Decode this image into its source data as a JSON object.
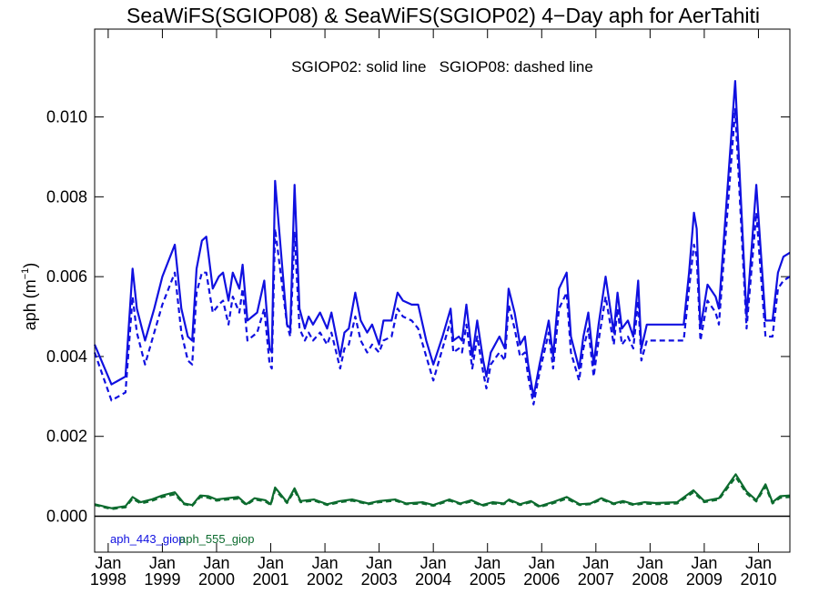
{
  "chart_data": {
    "type": "line",
    "title": "SeaWiFS(SGIOP08) & SeaWiFS(SGIOP02) 4−Day aph for AerTahiti",
    "ylabel": "aph (m",
    "ylabel_sup": "−1",
    "ylabel_close": ")",
    "annotation": "SGIOP02: solid line   SGIOP08: dashed line",
    "ylim": [
      -0.0009,
      0.0122
    ],
    "xlim": [
      1997.75,
      2010.58
    ],
    "y_ticks": [
      {
        "v": 0.0,
        "label": "0.000"
      },
      {
        "v": 0.002,
        "label": "0.002"
      },
      {
        "v": 0.004,
        "label": "0.004"
      },
      {
        "v": 0.006,
        "label": "0.006"
      },
      {
        "v": 0.008,
        "label": "0.008"
      },
      {
        "v": 0.01,
        "label": "0.010"
      }
    ],
    "x_ticks": [
      {
        "v": 1998.0,
        "month": "Jan",
        "year": "1998"
      },
      {
        "v": 1999.0,
        "month": "Jan",
        "year": "1999"
      },
      {
        "v": 2000.0,
        "month": "Jan",
        "year": "2000"
      },
      {
        "v": 2001.0,
        "month": "Jan",
        "year": "2001"
      },
      {
        "v": 2002.0,
        "month": "Jan",
        "year": "2002"
      },
      {
        "v": 2003.0,
        "month": "Jan",
        "year": "2003"
      },
      {
        "v": 2004.0,
        "month": "Jan",
        "year": "2004"
      },
      {
        "v": 2005.0,
        "month": "Jan",
        "year": "2005"
      },
      {
        "v": 2006.0,
        "month": "Jan",
        "year": "2006"
      },
      {
        "v": 2007.0,
        "month": "Jan",
        "year": "2007"
      },
      {
        "v": 2008.0,
        "month": "Jan",
        "year": "2008"
      },
      {
        "v": 2009.0,
        "month": "Jan",
        "year": "2009"
      },
      {
        "v": 2010.0,
        "month": "Jan",
        "year": "2010"
      }
    ],
    "reference_line": 0.0,
    "grid": false,
    "legend_position": "bottom-left",
    "series": [
      {
        "name": "aph_443_giop",
        "color": "#1010e0",
        "style": "solid",
        "x": [
          1997.75,
          1998.06,
          1998.32,
          1998.45,
          1998.53,
          1998.68,
          1998.85,
          1999.0,
          1999.23,
          1999.35,
          1999.47,
          1999.55,
          1999.63,
          1999.73,
          1999.81,
          1999.93,
          2000.04,
          2000.12,
          2000.22,
          2000.3,
          2000.42,
          2000.48,
          2000.57,
          2000.75,
          2000.88,
          2000.98,
          2001.02,
          2001.08,
          2001.3,
          2001.36,
          2001.44,
          2001.53,
          2001.63,
          2001.7,
          2001.78,
          2001.91,
          2002.04,
          2002.12,
          2002.28,
          2002.36,
          2002.44,
          2002.56,
          2002.66,
          2002.78,
          2002.87,
          2003.0,
          2003.08,
          2003.23,
          2003.34,
          2003.44,
          2003.6,
          2003.72,
          2003.87,
          2004.0,
          2004.17,
          2004.32,
          2004.37,
          2004.47,
          2004.53,
          2004.61,
          2004.72,
          2004.81,
          2004.92,
          2004.98,
          2005.06,
          2005.22,
          2005.32,
          2005.39,
          2005.5,
          2005.6,
          2005.69,
          2005.75,
          2005.85,
          2005.96,
          2006.13,
          2006.21,
          2006.32,
          2006.46,
          2006.54,
          2006.69,
          2006.77,
          2006.86,
          2006.96,
          2007.05,
          2007.18,
          2007.33,
          2007.4,
          2007.48,
          2007.59,
          2007.69,
          2007.78,
          2007.84,
          2007.94,
          2008.52,
          2008.62,
          2008.72,
          2008.81,
          2008.86,
          2008.93,
          2009.06,
          2009.21,
          2009.27,
          2009.57,
          2009.78,
          2009.96,
          2010.13,
          2010.26,
          2010.36,
          2010.46,
          2010.58
        ],
        "y": [
          0.0043,
          0.0033,
          0.0035,
          0.0062,
          0.0052,
          0.0044,
          0.0052,
          0.006,
          0.0068,
          0.0052,
          0.0045,
          0.0044,
          0.0062,
          0.0069,
          0.007,
          0.0057,
          0.006,
          0.0061,
          0.0054,
          0.0061,
          0.0057,
          0.0063,
          0.0049,
          0.0051,
          0.0059,
          0.0042,
          0.0041,
          0.0084,
          0.0048,
          0.0047,
          0.0083,
          0.0052,
          0.0047,
          0.005,
          0.0048,
          0.0051,
          0.0047,
          0.0051,
          0.004,
          0.0046,
          0.0047,
          0.0056,
          0.0049,
          0.0046,
          0.0048,
          0.0043,
          0.0049,
          0.0049,
          0.0056,
          0.0054,
          0.0053,
          0.0053,
          0.0044,
          0.0038,
          0.0045,
          0.0052,
          0.0044,
          0.0045,
          0.0044,
          0.0053,
          0.004,
          0.0049,
          0.0039,
          0.0035,
          0.0041,
          0.0045,
          0.0042,
          0.0057,
          0.0051,
          0.0043,
          0.0045,
          0.0038,
          0.003,
          0.0038,
          0.0049,
          0.004,
          0.0057,
          0.0061,
          0.0045,
          0.0037,
          0.0045,
          0.0051,
          0.0038,
          0.0048,
          0.006,
          0.0046,
          0.0056,
          0.0047,
          0.0049,
          0.0045,
          0.0059,
          0.0042,
          0.0048,
          0.0048,
          0.0048,
          0.0061,
          0.0076,
          0.0072,
          0.0047,
          0.0058,
          0.0055,
          0.0052,
          0.0109,
          0.005,
          0.0083,
          0.0049,
          0.0049,
          0.0061,
          0.0065,
          0.0066
        ]
      },
      {
        "name": "aph_443_giop",
        "color": "#1010e0",
        "style": "dashed",
        "x": [
          1997.75,
          1998.06,
          1998.32,
          1998.45,
          1998.53,
          1998.68,
          1998.85,
          1999.0,
          1999.23,
          1999.35,
          1999.47,
          1999.55,
          1999.63,
          1999.73,
          1999.81,
          1999.93,
          2000.04,
          2000.12,
          2000.22,
          2000.3,
          2000.42,
          2000.48,
          2000.57,
          2000.75,
          2000.88,
          2000.98,
          2001.02,
          2001.08,
          2001.3,
          2001.36,
          2001.44,
          2001.53,
          2001.63,
          2001.7,
          2001.78,
          2001.91,
          2002.04,
          2002.12,
          2002.28,
          2002.36,
          2002.44,
          2002.56,
          2002.66,
          2002.78,
          2002.87,
          2003.0,
          2003.08,
          2003.23,
          2003.34,
          2003.44,
          2003.6,
          2003.72,
          2003.87,
          2004.0,
          2004.17,
          2004.32,
          2004.37,
          2004.47,
          2004.53,
          2004.61,
          2004.72,
          2004.81,
          2004.92,
          2004.98,
          2005.06,
          2005.22,
          2005.32,
          2005.39,
          2005.5,
          2005.6,
          2005.69,
          2005.75,
          2005.85,
          2005.96,
          2006.13,
          2006.21,
          2006.32,
          2006.46,
          2006.54,
          2006.69,
          2006.77,
          2006.86,
          2006.96,
          2007.05,
          2007.18,
          2007.33,
          2007.4,
          2007.48,
          2007.59,
          2007.69,
          2007.78,
          2007.84,
          2007.94,
          2008.52,
          2008.62,
          2008.72,
          2008.81,
          2008.86,
          2008.93,
          2009.06,
          2009.21,
          2009.27,
          2009.57,
          2009.78,
          2009.96,
          2010.13,
          2010.26,
          2010.36,
          2010.46,
          2010.58
        ],
        "y": [
          0.0041,
          0.0029,
          0.0031,
          0.0055,
          0.0046,
          0.0038,
          0.0046,
          0.0053,
          0.0061,
          0.0046,
          0.0039,
          0.0038,
          0.0056,
          0.0061,
          0.0061,
          0.0051,
          0.0053,
          0.0054,
          0.0048,
          0.0055,
          0.0051,
          0.0057,
          0.0044,
          0.0046,
          0.0052,
          0.0038,
          0.0037,
          0.0072,
          0.0048,
          0.0045,
          0.0071,
          0.0047,
          0.0044,
          0.0046,
          0.0044,
          0.0046,
          0.0043,
          0.0046,
          0.0037,
          0.0042,
          0.0043,
          0.005,
          0.0044,
          0.0041,
          0.0043,
          0.0041,
          0.0044,
          0.0045,
          0.0052,
          0.005,
          0.0049,
          0.0047,
          0.004,
          0.0034,
          0.0042,
          0.0049,
          0.0041,
          0.0042,
          0.0041,
          0.0048,
          0.0037,
          0.0045,
          0.0036,
          0.0032,
          0.0038,
          0.0041,
          0.0039,
          0.0053,
          0.0047,
          0.004,
          0.0041,
          0.0035,
          0.0028,
          0.0036,
          0.0046,
          0.0037,
          0.0052,
          0.0056,
          0.0041,
          0.0034,
          0.0042,
          0.0047,
          0.0035,
          0.0044,
          0.0055,
          0.0043,
          0.0052,
          0.0043,
          0.0045,
          0.0042,
          0.0054,
          0.0039,
          0.0044,
          0.0044,
          0.0044,
          0.0057,
          0.0068,
          0.0065,
          0.0044,
          0.0054,
          0.0051,
          0.0048,
          0.0102,
          0.0047,
          0.0076,
          0.0045,
          0.0045,
          0.0057,
          0.0059,
          0.006
        ]
      },
      {
        "name": "aph_555_giop",
        "color": "#0c6b2e",
        "style": "solid",
        "x": [
          1997.75,
          1998.06,
          1998.32,
          1998.45,
          1998.6,
          1998.8,
          1999.0,
          1999.23,
          1999.4,
          1999.55,
          1999.7,
          1999.85,
          2000.0,
          2000.2,
          2000.4,
          2000.55,
          2000.7,
          2000.9,
          2001.0,
          2001.08,
          2001.3,
          2001.44,
          2001.55,
          2001.8,
          2002.04,
          2002.28,
          2002.5,
          2002.8,
          2003.0,
          2003.3,
          2003.5,
          2003.8,
          2004.0,
          2004.3,
          2004.5,
          2004.7,
          2004.9,
          2005.1,
          2005.3,
          2005.4,
          2005.6,
          2005.8,
          2005.96,
          2006.2,
          2006.46,
          2006.7,
          2006.9,
          2007.1,
          2007.33,
          2007.5,
          2007.7,
          2007.9,
          2008.1,
          2008.5,
          2008.8,
          2009.0,
          2009.27,
          2009.58,
          2009.78,
          2009.96,
          2010.13,
          2010.26,
          2010.4,
          2010.58
        ],
        "y": [
          0.0003,
          0.0002,
          0.00025,
          0.00048,
          0.00035,
          0.00042,
          0.00052,
          0.0006,
          0.00032,
          0.00028,
          0.00052,
          0.0005,
          0.00042,
          0.00045,
          0.00048,
          0.0003,
          0.00045,
          0.0004,
          0.0003,
          0.00072,
          0.00035,
          0.0007,
          0.00038,
          0.00042,
          0.0003,
          0.00038,
          0.00042,
          0.00032,
          0.00038,
          0.00042,
          0.00032,
          0.00035,
          0.00028,
          0.00042,
          0.00032,
          0.0004,
          0.00028,
          0.00035,
          0.00032,
          0.00042,
          0.0003,
          0.00038,
          0.00025,
          0.00035,
          0.00048,
          0.0003,
          0.00032,
          0.00045,
          0.00032,
          0.00038,
          0.0003,
          0.00035,
          0.00033,
          0.00035,
          0.00065,
          0.00038,
          0.00045,
          0.00105,
          0.00062,
          0.0004,
          0.0008,
          0.00035,
          0.0005,
          0.00052
        ]
      },
      {
        "name": "aph_555_giop",
        "color": "#0c6b2e",
        "style": "dashed",
        "x": [
          1997.75,
          1998.06,
          1998.32,
          1998.45,
          1998.6,
          1998.8,
          1999.0,
          1999.23,
          1999.4,
          1999.55,
          1999.7,
          1999.85,
          2000.0,
          2000.2,
          2000.4,
          2000.55,
          2000.7,
          2000.9,
          2001.0,
          2001.08,
          2001.3,
          2001.44,
          2001.55,
          2001.8,
          2002.04,
          2002.28,
          2002.5,
          2002.8,
          2003.0,
          2003.3,
          2003.5,
          2003.8,
          2004.0,
          2004.3,
          2004.5,
          2004.7,
          2004.9,
          2005.1,
          2005.3,
          2005.4,
          2005.6,
          2005.8,
          2005.96,
          2006.2,
          2006.46,
          2006.7,
          2006.9,
          2007.1,
          2007.33,
          2007.5,
          2007.7,
          2007.9,
          2008.1,
          2008.5,
          2008.8,
          2009.0,
          2009.27,
          2009.58,
          2009.78,
          2009.96,
          2010.13,
          2010.26,
          2010.4,
          2010.58
        ],
        "y": [
          0.00028,
          0.00018,
          0.00022,
          0.00044,
          0.00032,
          0.00038,
          0.00048,
          0.00055,
          0.0003,
          0.00026,
          0.00048,
          0.00046,
          0.00039,
          0.00042,
          0.00044,
          0.00028,
          0.00042,
          0.00037,
          0.00028,
          0.00066,
          0.00033,
          0.00064,
          0.00035,
          0.00039,
          0.00028,
          0.00035,
          0.00039,
          0.0003,
          0.00035,
          0.00039,
          0.0003,
          0.00032,
          0.00026,
          0.00039,
          0.0003,
          0.00037,
          0.00026,
          0.00032,
          0.0003,
          0.00039,
          0.00028,
          0.00035,
          0.00023,
          0.00032,
          0.00044,
          0.00028,
          0.0003,
          0.00042,
          0.0003,
          0.00035,
          0.00028,
          0.00032,
          0.0003,
          0.00032,
          0.0006,
          0.00035,
          0.00042,
          0.00098,
          0.00057,
          0.00037,
          0.00074,
          0.00032,
          0.00046,
          0.00048
        ]
      }
    ]
  }
}
